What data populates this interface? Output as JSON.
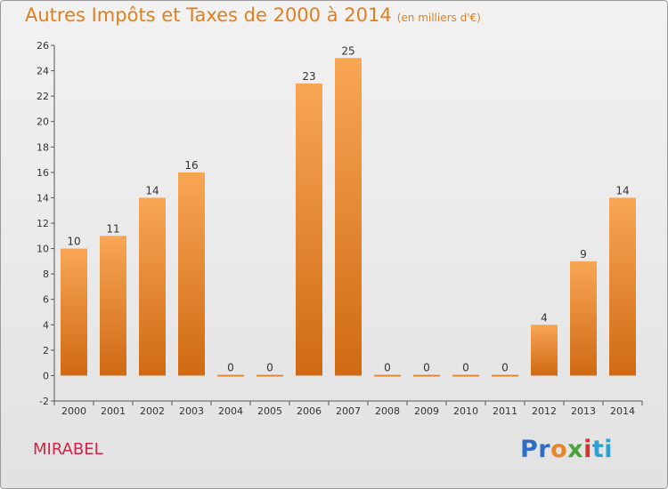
{
  "header": {
    "title": "Autres Impôts et Taxes de 2000 à 2014",
    "unit": "(en milliers d'€)"
  },
  "footer": {
    "location": "MIRABEL",
    "logo_parts": [
      "Pr",
      "o",
      "x",
      "i",
      "ti"
    ]
  },
  "colors": {
    "bar_light": "#f8a655",
    "bar_dark": "#d06a13",
    "title": "#e07f1e",
    "location": "#c9264a"
  },
  "chart_data": {
    "type": "bar",
    "categories": [
      "2000",
      "2001",
      "2002",
      "2003",
      "2004",
      "2005",
      "2006",
      "2007",
      "2008",
      "2009",
      "2010",
      "2011",
      "2012",
      "2013",
      "2014"
    ],
    "values": [
      10,
      11,
      14,
      16,
      0,
      0,
      23,
      25,
      0,
      0,
      0,
      0,
      4,
      9,
      14
    ],
    "ylim": [
      -2,
      26
    ],
    "yticks": [
      -2,
      0,
      2,
      4,
      6,
      8,
      10,
      12,
      14,
      16,
      18,
      20,
      22,
      24,
      26
    ],
    "grid": false
  }
}
